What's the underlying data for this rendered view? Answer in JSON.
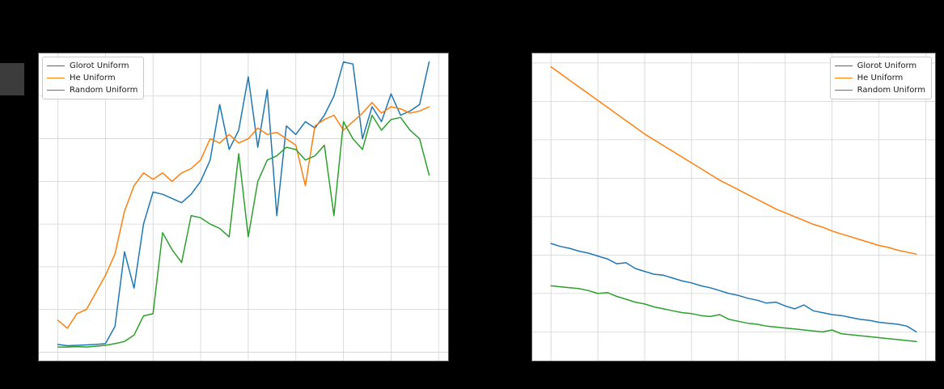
{
  "page": {
    "background": "#000000",
    "panel_background": "#ffffff",
    "grid_color": "#d3d3d3",
    "spine_color": "#555555"
  },
  "legend_labels": [
    "Glorot Uniform",
    "He Uniform",
    "Random Uniform"
  ],
  "chart_data": [
    {
      "type": "line",
      "title": "",
      "xlabel": "",
      "ylabel": "",
      "grid": true,
      "legend_position": "top-left",
      "xlim": [
        -2,
        41
      ],
      "ylim": [
        0.08,
        0.8
      ],
      "xticks": [
        0,
        5,
        10,
        15,
        20,
        25,
        30,
        35,
        40
      ],
      "yticks": [
        0.1,
        0.2,
        0.3,
        0.4,
        0.5,
        0.6,
        0.7
      ],
      "x": [
        0,
        1,
        2,
        3,
        4,
        5,
        6,
        7,
        8,
        9,
        10,
        11,
        12,
        13,
        14,
        15,
        16,
        17,
        18,
        19,
        20,
        21,
        22,
        23,
        24,
        25,
        26,
        27,
        28,
        29,
        30,
        31,
        32,
        33,
        34,
        35,
        36,
        37,
        38,
        39
      ],
      "series": [
        {
          "name": "Glorot Uniform",
          "color": "#1f77b4",
          "values": [
            0.118,
            0.115,
            0.116,
            0.117,
            0.118,
            0.12,
            0.16,
            0.335,
            0.25,
            0.4,
            0.475,
            0.47,
            0.46,
            0.45,
            0.47,
            0.5,
            0.55,
            0.68,
            0.575,
            0.62,
            0.745,
            0.58,
            0.715,
            0.42,
            0.63,
            0.61,
            0.64,
            0.625,
            0.655,
            0.7,
            0.78,
            0.775,
            0.6,
            0.675,
            0.64,
            0.705,
            0.655,
            0.665,
            0.68,
            0.78
          ]
        },
        {
          "name": "He Uniform",
          "color": "#ff7f0e",
          "values": [
            0.175,
            0.156,
            0.19,
            0.2,
            0.24,
            0.28,
            0.33,
            0.43,
            0.49,
            0.52,
            0.505,
            0.52,
            0.5,
            0.52,
            0.53,
            0.55,
            0.6,
            0.59,
            0.61,
            0.59,
            0.6,
            0.625,
            0.61,
            0.615,
            0.6,
            0.585,
            0.49,
            0.63,
            0.645,
            0.655,
            0.62,
            0.64,
            0.66,
            0.685,
            0.66,
            0.675,
            0.67,
            0.66,
            0.665,
            0.675
          ]
        },
        {
          "name": "Random Uniform",
          "color": "#2ca02c",
          "values": [
            0.112,
            0.112,
            0.113,
            0.112,
            0.114,
            0.116,
            0.12,
            0.125,
            0.14,
            0.185,
            0.19,
            0.38,
            0.34,
            0.31,
            0.42,
            0.415,
            0.4,
            0.39,
            0.37,
            0.565,
            0.37,
            0.5,
            0.55,
            0.56,
            0.58,
            0.575,
            0.55,
            0.56,
            0.585,
            0.42,
            0.64,
            0.6,
            0.575,
            0.655,
            0.62,
            0.645,
            0.65,
            0.62,
            0.6,
            0.515
          ]
        }
      ]
    },
    {
      "type": "line",
      "title": "",
      "xlabel": "",
      "ylabel": "",
      "grid": true,
      "legend_position": "top-right",
      "xlim": [
        -2,
        41
      ],
      "ylim": [
        0.25,
        1.85
      ],
      "xticks": [
        0,
        5,
        10,
        15,
        20,
        25,
        30,
        35,
        40
      ],
      "yticks": [
        0.4,
        0.6,
        0.8,
        1.0,
        1.2,
        1.4,
        1.6,
        1.8
      ],
      "x": [
        0,
        1,
        2,
        3,
        4,
        5,
        6,
        7,
        8,
        9,
        10,
        11,
        12,
        13,
        14,
        15,
        16,
        17,
        18,
        19,
        20,
        21,
        22,
        23,
        24,
        25,
        26,
        27,
        28,
        29,
        30,
        31,
        32,
        33,
        34,
        35,
        36,
        37,
        38,
        39
      ],
      "series": [
        {
          "name": "Glorot Uniform",
          "color": "#1f77b4",
          "values": [
            0.86,
            0.845,
            0.835,
            0.82,
            0.81,
            0.795,
            0.78,
            0.755,
            0.76,
            0.73,
            0.715,
            0.7,
            0.695,
            0.68,
            0.665,
            0.655,
            0.64,
            0.63,
            0.615,
            0.6,
            0.59,
            0.575,
            0.565,
            0.55,
            0.555,
            0.535,
            0.52,
            0.54,
            0.51,
            0.5,
            0.49,
            0.485,
            0.475,
            0.465,
            0.46,
            0.45,
            0.445,
            0.44,
            0.43,
            0.4
          ]
        },
        {
          "name": "He Uniform",
          "color": "#ff7f0e",
          "values": [
            1.78,
            1.745,
            1.71,
            1.675,
            1.64,
            1.605,
            1.57,
            1.535,
            1.5,
            1.465,
            1.43,
            1.4,
            1.37,
            1.34,
            1.31,
            1.28,
            1.25,
            1.22,
            1.19,
            1.165,
            1.14,
            1.115,
            1.09,
            1.065,
            1.04,
            1.02,
            1.0,
            0.98,
            0.96,
            0.945,
            0.925,
            0.91,
            0.895,
            0.88,
            0.865,
            0.85,
            0.84,
            0.825,
            0.815,
            0.805
          ]
        },
        {
          "name": "Random Uniform",
          "color": "#2ca02c",
          "values": [
            0.64,
            0.635,
            0.63,
            0.625,
            0.615,
            0.6,
            0.605,
            0.585,
            0.57,
            0.555,
            0.545,
            0.53,
            0.52,
            0.51,
            0.5,
            0.495,
            0.485,
            0.48,
            0.49,
            0.465,
            0.455,
            0.445,
            0.44,
            0.43,
            0.425,
            0.42,
            0.415,
            0.41,
            0.405,
            0.4,
            0.41,
            0.39,
            0.385,
            0.38,
            0.375,
            0.37,
            0.365,
            0.36,
            0.355,
            0.35
          ]
        }
      ]
    }
  ]
}
